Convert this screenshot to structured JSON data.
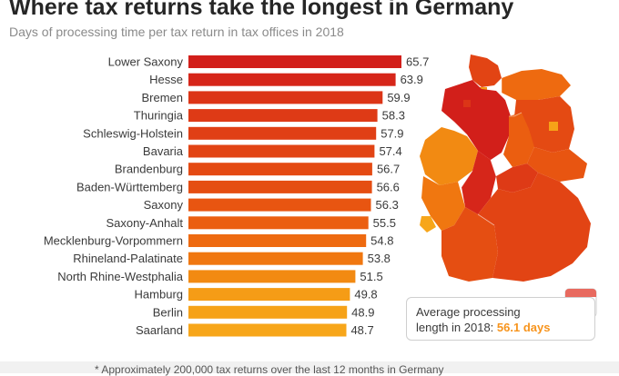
{
  "header": {
    "title": "Where tax returns take the longest in Germany",
    "subtitle": "Days of processing time per tax return in tax offices in 2018"
  },
  "callout": {
    "line1": "Average processing",
    "line2_prefix": "length in 2018: ",
    "value_text": "56.1 days"
  },
  "footer": {
    "note": "* Approximately 200,000 tax returns over the last 12 months in Germany"
  },
  "colors": {
    "red": "#d6201a",
    "orange_red": "#e44d12",
    "orange": "#f07e10",
    "amber": "#f7a41a"
  },
  "chart_data": {
    "type": "bar",
    "orientation": "horizontal",
    "categories": [
      "Lower Saxony",
      "Hesse",
      "Bremen",
      "Thuringia",
      "Schleswig-Holstein",
      "Bavaria",
      "Brandenburg",
      "Baden-Württemberg",
      "Saxony",
      "Saxony-Anhalt",
      "Mecklenburg-Vorpommern",
      "Rhineland-Palatinate",
      "North Rhine-Westphalia",
      "Hamburg",
      "Berlin",
      "Saarland"
    ],
    "values": [
      65.7,
      63.9,
      59.9,
      58.3,
      57.9,
      57.4,
      56.7,
      56.6,
      56.3,
      55.5,
      54.8,
      53.8,
      51.5,
      49.8,
      48.9,
      48.7
    ],
    "value_labels": [
      "65.7",
      "63.9",
      "59.9",
      "58.3",
      "57.9",
      "57.4",
      "56.7",
      "56.6",
      "56.3",
      "55.5",
      "54.8",
      "53.8",
      "51.5",
      "49.8",
      "48.9",
      "48.7"
    ],
    "bar_colors": [
      "#d21f1a",
      "#d6261a",
      "#dc3517",
      "#de3a16",
      "#e03f15",
      "#e24414",
      "#e44a13",
      "#e54e12",
      "#e85511",
      "#eb5e10",
      "#ee6a10",
      "#f07710",
      "#f28a12",
      "#f59c16",
      "#f6a218",
      "#f7a61a"
    ],
    "title": "Where tax returns take the longest in Germany",
    "subtitle": "Days of processing time per tax return in tax offices in 2018",
    "average": 56.1
  }
}
